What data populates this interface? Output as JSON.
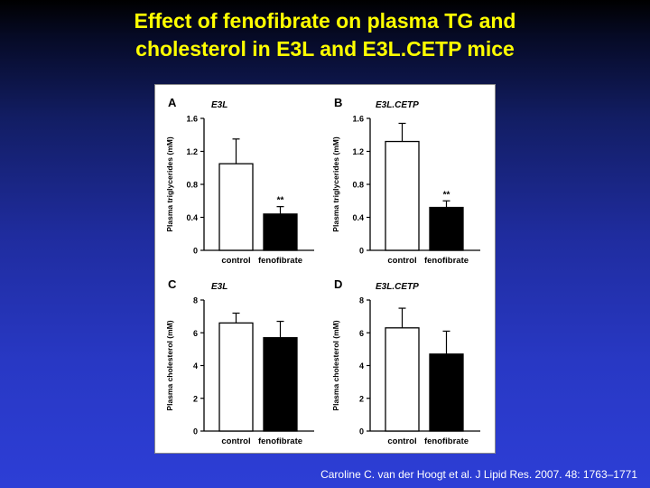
{
  "slide": {
    "title_line1": "Effect of fenofibrate on plasma TG and",
    "title_line2": "cholesterol in E3L and E3L.CETP mice",
    "citation": "Caroline C. van der Hoogt et al. J Lipid Res. 2007. 48: 1763–1771"
  },
  "colors": {
    "title": "#ffff00",
    "control_bar": "#ffffff",
    "fenofibrate_bar": "#000000"
  },
  "chart_data": [
    {
      "panel": "A",
      "title": "E3L",
      "type": "bar",
      "ylabel": "Plasma triglycerides (mM)",
      "categories": [
        "control",
        "fenofibrate"
      ],
      "values": [
        1.05,
        0.44
      ],
      "errors": [
        0.3,
        0.09
      ],
      "significance": [
        "",
        "**"
      ],
      "ylim": [
        0,
        1.6
      ],
      "yticks": [
        "0",
        "0.4",
        "0.8",
        "1.2",
        "1.6"
      ]
    },
    {
      "panel": "B",
      "title": "E3L.CETP",
      "type": "bar",
      "ylabel": "Plasma triglycerides (mM)",
      "categories": [
        "control",
        "fenofibrate"
      ],
      "values": [
        1.32,
        0.52
      ],
      "errors": [
        0.22,
        0.08
      ],
      "significance": [
        "",
        "**"
      ],
      "ylim": [
        0,
        1.6
      ],
      "yticks": [
        "0",
        "0.4",
        "0.8",
        "1.2",
        "1.6"
      ]
    },
    {
      "panel": "C",
      "title": "E3L",
      "type": "bar",
      "ylabel": "Plasma cholesterol (mM)",
      "categories": [
        "control",
        "fenofibrate"
      ],
      "values": [
        6.6,
        5.7
      ],
      "errors": [
        0.6,
        1.0
      ],
      "significance": [
        "",
        ""
      ],
      "ylim": [
        0,
        8
      ],
      "yticks": [
        "0",
        "2",
        "4",
        "6",
        "8"
      ]
    },
    {
      "panel": "D",
      "title": "E3L.CETP",
      "type": "bar",
      "ylabel": "Plasma cholesterol (mM)",
      "categories": [
        "control",
        "fenofibrate"
      ],
      "values": [
        6.3,
        4.7
      ],
      "errors": [
        1.2,
        1.4
      ],
      "significance": [
        "",
        ""
      ],
      "ylim": [
        0,
        8
      ],
      "yticks": [
        "0",
        "2",
        "4",
        "6",
        "8"
      ]
    }
  ]
}
